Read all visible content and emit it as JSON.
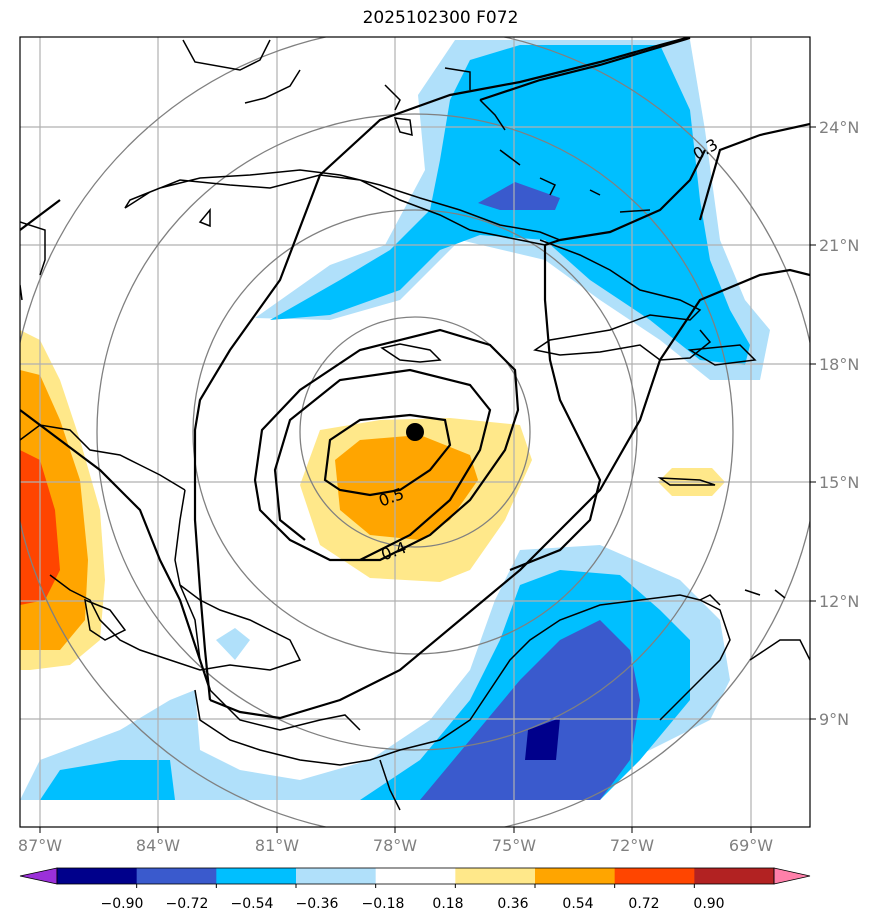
{
  "title": "2025102300 F072",
  "map": {
    "lon_ticks": [
      "87°W",
      "84°W",
      "81°W",
      "78°W",
      "75°W",
      "72°W",
      "69°W"
    ],
    "lat_ticks": [
      "24°N",
      "21°N",
      "18°N",
      "15°N",
      "12°N",
      "9°N"
    ],
    "contour_labels": [
      "0.3",
      "0.5",
      "0.4"
    ],
    "center_marker": "storm-center-dot"
  },
  "colorbar": {
    "ticks": [
      "−0.90",
      "−0.72",
      "−0.54",
      "−0.36",
      "−0.18",
      "0.18",
      "0.36",
      "0.54",
      "0.72",
      "0.90"
    ],
    "colors": [
      "#9b30d9",
      "#00008b",
      "#3a5acd",
      "#00bfff",
      "#b0e0fa",
      "#ffffff",
      "#ffe88a",
      "#ffa500",
      "#ff4500",
      "#b22222",
      "#ff80aa"
    ]
  }
}
